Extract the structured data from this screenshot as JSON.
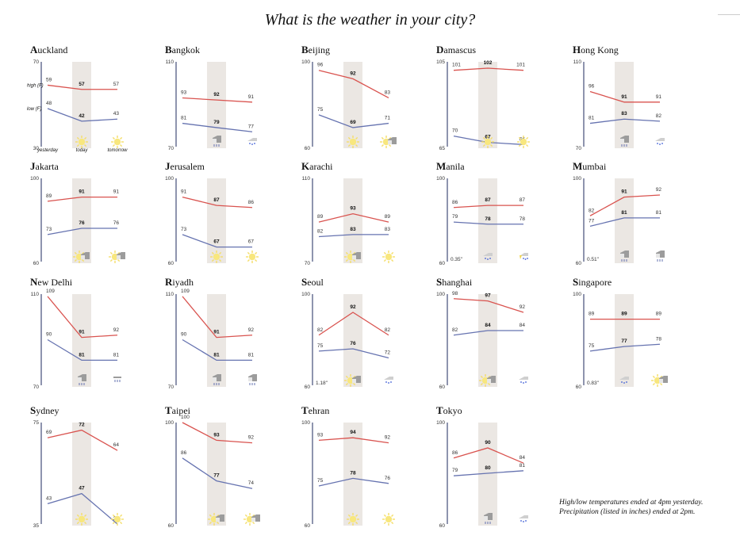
{
  "title": "What is the weather in your city?",
  "notes": [
    "High/low temperatures ended at 4pm yesterday.",
    "Precipitation (listed in inches) ended at 2pm."
  ],
  "legend": {
    "high_label": "high (F)",
    "low_label": "low (F)",
    "day_labels": [
      "yesterday",
      "today",
      "tomorrow"
    ]
  },
  "colors": {
    "high": "#d9534f",
    "low": "#6673b0",
    "today_band": "#ebe7e3",
    "axis": "#1c2a5c"
  },
  "chart_data": [
    {
      "type": "line",
      "city": "Auckland",
      "x": [
        "yesterday",
        "today",
        "tomorrow"
      ],
      "ylim": [
        30,
        70
      ],
      "series": [
        {
          "name": "high (F)",
          "values": [
            59,
            57,
            57
          ]
        },
        {
          "name": "low (F)",
          "values": [
            48,
            42,
            43
          ]
        }
      ],
      "weather": [
        "",
        "sun",
        "sun"
      ],
      "precip": ""
    },
    {
      "type": "line",
      "city": "Bangkok",
      "x": [
        "yesterday",
        "today",
        "tomorrow"
      ],
      "ylim": [
        70,
        110
      ],
      "series": [
        {
          "name": "high (F)",
          "values": [
            93,
            92,
            91
          ]
        },
        {
          "name": "low (F)",
          "values": [
            81,
            79,
            77
          ]
        }
      ],
      "weather": [
        "",
        "rain-cloud",
        "showers"
      ],
      "precip": ""
    },
    {
      "type": "line",
      "city": "Beijing",
      "x": [
        "yesterday",
        "today",
        "tomorrow"
      ],
      "ylim": [
        60,
        100
      ],
      "series": [
        {
          "name": "high (F)",
          "values": [
            96,
            92,
            83
          ]
        },
        {
          "name": "low (F)",
          "values": [
            75,
            69,
            71
          ]
        }
      ],
      "weather": [
        "",
        "sun",
        "partly-cloudy"
      ],
      "precip": ""
    },
    {
      "type": "line",
      "city": "Damascus",
      "x": [
        "yesterday",
        "today",
        "tomorrow"
      ],
      "ylim": [
        65,
        105
      ],
      "series": [
        {
          "name": "high (F)",
          "values": [
            101,
            102,
            101
          ]
        },
        {
          "name": "low (F)",
          "values": [
            70,
            67,
            66
          ]
        }
      ],
      "weather": [
        "",
        "sun",
        "sun"
      ],
      "precip": ""
    },
    {
      "type": "line",
      "city": "Hong Kong",
      "x": [
        "yesterday",
        "today",
        "tomorrow"
      ],
      "ylim": [
        70,
        110
      ],
      "series": [
        {
          "name": "high (F)",
          "values": [
            96,
            91,
            91
          ]
        },
        {
          "name": "low (F)",
          "values": [
            81,
            83,
            82
          ]
        }
      ],
      "weather": [
        "",
        "rain-cloud",
        "showers"
      ],
      "precip": ""
    },
    {
      "type": "line",
      "city": "Jakarta",
      "x": [
        "yesterday",
        "today",
        "tomorrow"
      ],
      "ylim": [
        60,
        100
      ],
      "series": [
        {
          "name": "high (F)",
          "values": [
            89,
            91,
            91
          ]
        },
        {
          "name": "low (F)",
          "values": [
            73,
            76,
            76
          ]
        }
      ],
      "weather": [
        "",
        "partly-cloudy",
        "partly-cloudy"
      ],
      "precip": ""
    },
    {
      "type": "line",
      "city": "Jerusalem",
      "x": [
        "yesterday",
        "today",
        "tomorrow"
      ],
      "ylim": [
        60,
        100
      ],
      "series": [
        {
          "name": "high (F)",
          "values": [
            91,
            87,
            86
          ]
        },
        {
          "name": "low (F)",
          "values": [
            73,
            67,
            67
          ]
        }
      ],
      "weather": [
        "",
        "sun",
        "sun"
      ],
      "precip": ""
    },
    {
      "type": "line",
      "city": "Karachi",
      "x": [
        "yesterday",
        "today",
        "tomorrow"
      ],
      "ylim": [
        70,
        110
      ],
      "series": [
        {
          "name": "high (F)",
          "values": [
            89,
            93,
            89
          ]
        },
        {
          "name": "low (F)",
          "values": [
            82,
            83,
            83
          ]
        }
      ],
      "weather": [
        "",
        "partly-cloudy",
        "sun"
      ],
      "precip": ""
    },
    {
      "type": "line",
      "city": "Manila",
      "x": [
        "yesterday",
        "today",
        "tomorrow"
      ],
      "ylim": [
        60,
        100
      ],
      "series": [
        {
          "name": "high (F)",
          "values": [
            86,
            87,
            87
          ]
        },
        {
          "name": "low (F)",
          "values": [
            79,
            78,
            78
          ]
        }
      ],
      "weather": [
        "",
        "showers",
        "thunderstorm"
      ],
      "precip": "0.35\""
    },
    {
      "type": "line",
      "city": "Mumbai",
      "x": [
        "yesterday",
        "today",
        "tomorrow"
      ],
      "ylim": [
        60,
        100
      ],
      "series": [
        {
          "name": "high (F)",
          "values": [
            82,
            91,
            92
          ]
        },
        {
          "name": "low (F)",
          "values": [
            77,
            81,
            81
          ]
        }
      ],
      "weather": [
        "",
        "rain-cloud",
        "rain-cloud"
      ],
      "precip": "0.51\""
    },
    {
      "type": "line",
      "city": "New Delhi",
      "x": [
        "yesterday",
        "today",
        "tomorrow"
      ],
      "ylim": [
        70,
        110
      ],
      "series": [
        {
          "name": "high (F)",
          "values": [
            109,
            91,
            92
          ]
        },
        {
          "name": "low (F)",
          "values": [
            90,
            81,
            81
          ]
        }
      ],
      "weather": [
        "",
        "rain-cloud",
        "rain"
      ],
      "precip": ""
    },
    {
      "type": "line",
      "city": "Riyadh",
      "x": [
        "yesterday",
        "today",
        "tomorrow"
      ],
      "ylim": [
        70,
        110
      ],
      "series": [
        {
          "name": "high (F)",
          "values": [
            109,
            91,
            92
          ]
        },
        {
          "name": "low (F)",
          "values": [
            90,
            81,
            81
          ]
        }
      ],
      "weather": [
        "",
        "rain-cloud",
        "rain-cloud"
      ],
      "precip": ""
    },
    {
      "type": "line",
      "city": "Seoul",
      "x": [
        "yesterday",
        "today",
        "tomorrow"
      ],
      "ylim": [
        60,
        100
      ],
      "series": [
        {
          "name": "high (F)",
          "values": [
            82,
            92,
            82
          ]
        },
        {
          "name": "low (F)",
          "values": [
            75,
            76,
            72
          ]
        }
      ],
      "weather": [
        "",
        "partly-cloudy",
        "showers"
      ],
      "precip": "1.18\""
    },
    {
      "type": "line",
      "city": "Shanghai",
      "x": [
        "yesterday",
        "today",
        "tomorrow"
      ],
      "ylim": [
        60,
        100
      ],
      "series": [
        {
          "name": "high (F)",
          "values": [
            98,
            97,
            92
          ]
        },
        {
          "name": "low (F)",
          "values": [
            82,
            84,
            84
          ]
        }
      ],
      "weather": [
        "",
        "partly-cloudy",
        "showers"
      ],
      "precip": ""
    },
    {
      "type": "line",
      "city": "Singapore",
      "x": [
        "yesterday",
        "today",
        "tomorrow"
      ],
      "ylim": [
        60,
        100
      ],
      "series": [
        {
          "name": "high (F)",
          "values": [
            89,
            89,
            89
          ]
        },
        {
          "name": "low (F)",
          "values": [
            75,
            77,
            78
          ]
        }
      ],
      "weather": [
        "",
        "showers",
        "partly-cloudy"
      ],
      "precip": "0.83\""
    },
    {
      "type": "line",
      "city": "Sydney",
      "x": [
        "yesterday",
        "today",
        "tomorrow"
      ],
      "ylim": [
        35,
        75
      ],
      "series": [
        {
          "name": "high (F)",
          "values": [
            69,
            72,
            64
          ]
        },
        {
          "name": "low (F)",
          "values": [
            43,
            47,
            35
          ]
        }
      ],
      "weather": [
        "",
        "sun",
        "sun"
      ],
      "precip": ""
    },
    {
      "type": "line",
      "city": "Taipei",
      "x": [
        "yesterday",
        "today",
        "tomorrow"
      ],
      "ylim": [
        60,
        100
      ],
      "series": [
        {
          "name": "high (F)",
          "values": [
            100,
            93,
            92
          ]
        },
        {
          "name": "low (F)",
          "values": [
            86,
            77,
            74
          ]
        }
      ],
      "weather": [
        "",
        "partly-cloudy",
        "partly-cloudy"
      ],
      "precip": ""
    },
    {
      "type": "line",
      "city": "Tehran",
      "x": [
        "yesterday",
        "today",
        "tomorrow"
      ],
      "ylim": [
        60,
        100
      ],
      "series": [
        {
          "name": "high (F)",
          "values": [
            93,
            94,
            92
          ]
        },
        {
          "name": "low (F)",
          "values": [
            75,
            78,
            76
          ]
        }
      ],
      "weather": [
        "",
        "sun",
        "sun"
      ],
      "precip": ""
    },
    {
      "type": "line",
      "city": "Tokyo",
      "x": [
        "yesterday",
        "today",
        "tomorrow"
      ],
      "ylim": [
        60,
        100
      ],
      "series": [
        {
          "name": "high (F)",
          "values": [
            86,
            90,
            84
          ]
        },
        {
          "name": "low (F)",
          "values": [
            79,
            80,
            81
          ]
        }
      ],
      "weather": [
        "",
        "rain-cloud",
        "showers"
      ],
      "precip": ""
    }
  ]
}
